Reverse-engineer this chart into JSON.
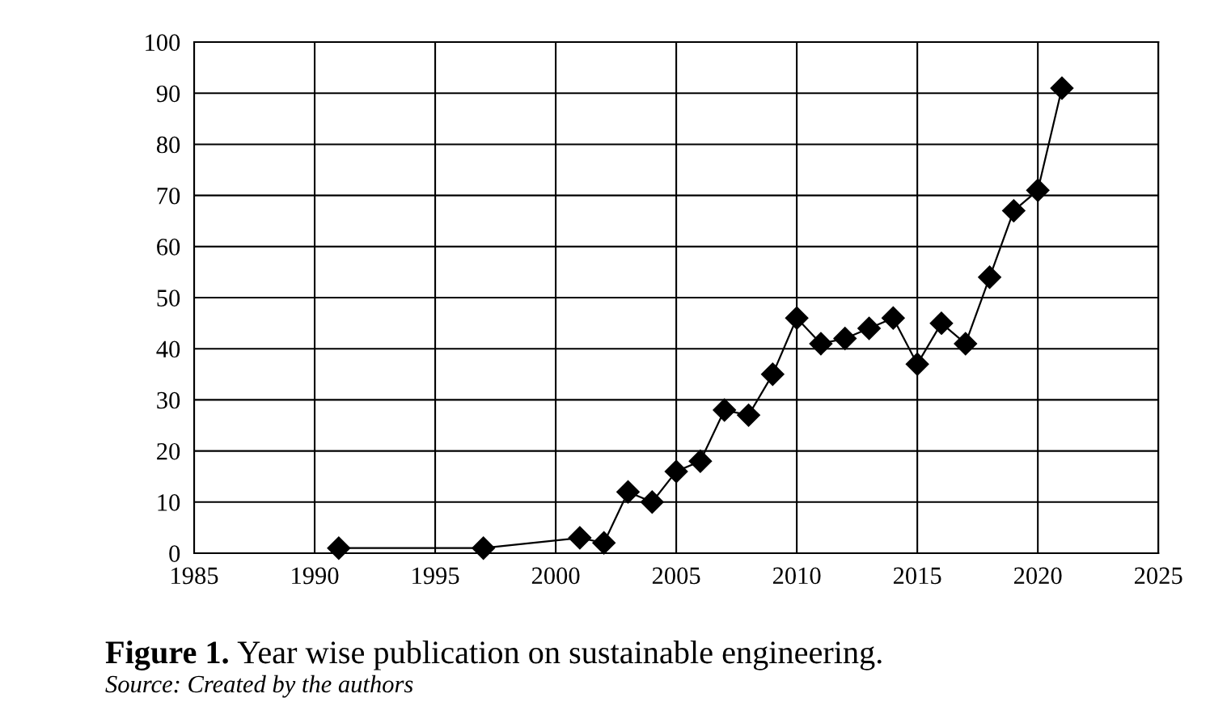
{
  "chart_data": {
    "type": "line",
    "title": "Figure 1. Year wise publication on sustainable engineering.",
    "annotations": [
      "Source: Created by the authors"
    ],
    "x": [
      1991,
      1997,
      2001,
      2002,
      2003,
      2004,
      2005,
      2006,
      2007,
      2008,
      2009,
      2010,
      2011,
      2012,
      2013,
      2014,
      2015,
      2016,
      2017,
      2018,
      2019,
      2020,
      2021
    ],
    "series": [
      {
        "color": "#000000",
        "values": [
          1,
          1,
          3,
          2,
          12,
          10,
          16,
          18,
          28,
          27,
          35,
          46,
          41,
          42,
          44,
          46,
          37,
          45,
          41,
          54,
          67,
          71,
          91
        ]
      }
    ],
    "xlim": [
      1985,
      2025
    ],
    "xticks": [
      1985,
      1990,
      1995,
      2000,
      2005,
      2010,
      2015,
      2020,
      2025
    ],
    "ylim": [
      0,
      100
    ],
    "yticks": [
      0,
      10,
      20,
      30,
      40,
      50,
      60,
      70,
      80,
      90,
      100
    ],
    "grid": true,
    "marker": "diamond",
    "line_style": "solid"
  }
}
